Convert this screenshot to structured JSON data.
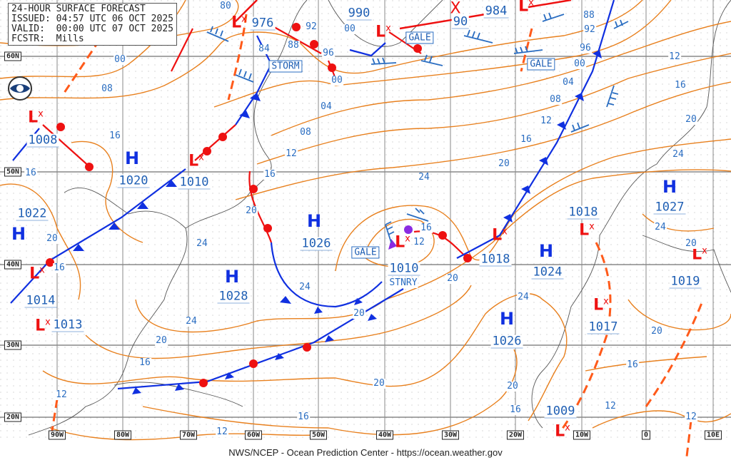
{
  "header": {
    "title": "24-HOUR SURFACE FORECAST",
    "issued": "ISSUED: 04:57 UTC 06 OCT 2025",
    "valid": "VALID:  00:00 UTC 07 OCT 2025",
    "forecaster": "FCSTR:  Mills"
  },
  "footer": "NWS/NCEP - Ocean Prediction Center - https://ocean.weather.gov",
  "logo": "NOAA",
  "latitudes": [
    "60N",
    "50N",
    "40N",
    "30N",
    "20N"
  ],
  "longitudes": [
    "90W",
    "80W",
    "70W",
    "60W",
    "50W",
    "40W",
    "30W",
    "20W",
    "10W",
    "0",
    "10E"
  ],
  "colors": {
    "isobar": "#e8801e",
    "cold_front": "#1030e0",
    "warm_front": "#ee1111",
    "trough": "#ff5a1a",
    "text": "#1f5fb4"
  },
  "highs": [
    {
      "symbol": "H",
      "pressure": "1020"
    },
    {
      "symbol": "H",
      "pressure": "1022"
    },
    {
      "symbol": "H",
      "pressure": "1026"
    },
    {
      "symbol": "H",
      "pressure": "1028"
    },
    {
      "symbol": "H",
      "pressure": "1024"
    },
    {
      "symbol": "H",
      "pressure": "1026"
    },
    {
      "symbol": "H",
      "pressure": "1027"
    }
  ],
  "lows": [
    {
      "symbol": "L",
      "pressure": "1008"
    },
    {
      "symbol": "L",
      "pressure": "976"
    },
    {
      "symbol": "L",
      "pressure": "990"
    },
    {
      "symbol": "L",
      "pressure": "1010"
    },
    {
      "symbol": "L",
      "pressure": "1010",
      "note": "STNRY"
    },
    {
      "symbol": "L",
      "pressure": "1018"
    },
    {
      "symbol": "L",
      "pressure": "1018"
    },
    {
      "symbol": "L",
      "pressure": "1014"
    },
    {
      "symbol": "L",
      "pressure": "1013"
    },
    {
      "symbol": "L",
      "pressure": "1017"
    },
    {
      "symbol": "L",
      "pressure": "1019"
    },
    {
      "symbol": "L",
      "pressure": "1009"
    },
    {
      "symbol": "L",
      "pressure": "984"
    },
    {
      "symbol": "X",
      "pressure": "90"
    }
  ],
  "warnings": [
    "STORM",
    "GALE",
    "GALE",
    "GALE"
  ],
  "isobar_labels": [
    "80",
    "92",
    "88",
    "84",
    "96",
    "00",
    "00",
    "00",
    "08",
    "04",
    "08",
    "12",
    "16",
    "20",
    "24",
    "24",
    "24",
    "16",
    "16",
    "20",
    "16",
    "24",
    "20",
    "16",
    "12",
    "12",
    "16",
    "20",
    "20",
    "20",
    "16",
    "12",
    "20",
    "16",
    "12",
    "08",
    "04",
    "00",
    "96",
    "92",
    "88",
    "12",
    "16",
    "20",
    "24",
    "24",
    "20",
    "20",
    "16",
    "12",
    "12",
    "20",
    "16",
    "24"
  ]
}
